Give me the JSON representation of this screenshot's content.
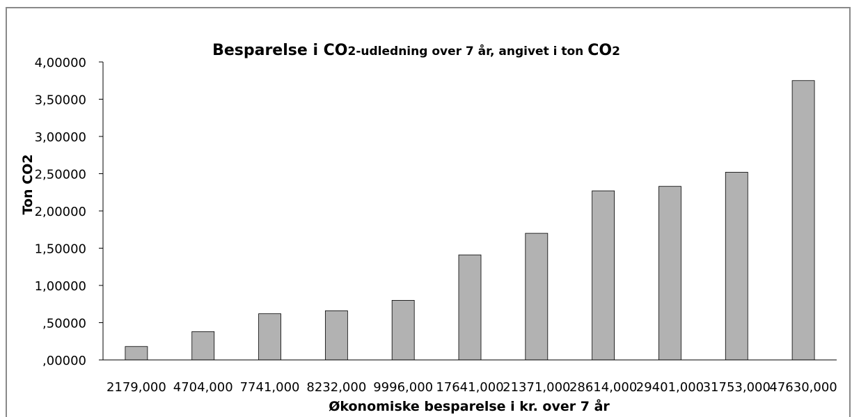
{
  "chart_data": {
    "type": "bar",
    "title": "Besparelse i CO2-udledning over 7 år, angivet i ton CO2",
    "title_parts": [
      "Besparelse i ",
      "CO",
      "2-udledning over 7 år, angivet i ton ",
      "CO",
      "2"
    ],
    "xlabel": "Økonomiske besparelse i kr. over 7 år",
    "ylabel": "Ton CO2",
    "categories": [
      "2179,000",
      "4704,000",
      "7741,000",
      "8232,000",
      "9996,000",
      "17641,000",
      "21371,000",
      "28614,000",
      "29401,000",
      "31753,000",
      "47630,000"
    ],
    "values": [
      0.18,
      0.38,
      0.62,
      0.66,
      0.8,
      1.41,
      1.7,
      2.27,
      2.33,
      2.52,
      3.75
    ],
    "ylim": [
      0,
      4
    ],
    "yticks": [
      0,
      0.5,
      1,
      1.5,
      2,
      2.5,
      3,
      3.5,
      4
    ],
    "ytick_labels": [
      ",00000",
      ",50000",
      "1,00000",
      "1,50000",
      "2,00000",
      "2,50000",
      "3,00000",
      "3,50000",
      "4,00000"
    ],
    "grid": false,
    "legend": "none",
    "colors": {
      "bar_fill": "#b2b2b2",
      "bar_stroke": "#000000",
      "axis": "#000000",
      "frame": "#898989"
    }
  }
}
